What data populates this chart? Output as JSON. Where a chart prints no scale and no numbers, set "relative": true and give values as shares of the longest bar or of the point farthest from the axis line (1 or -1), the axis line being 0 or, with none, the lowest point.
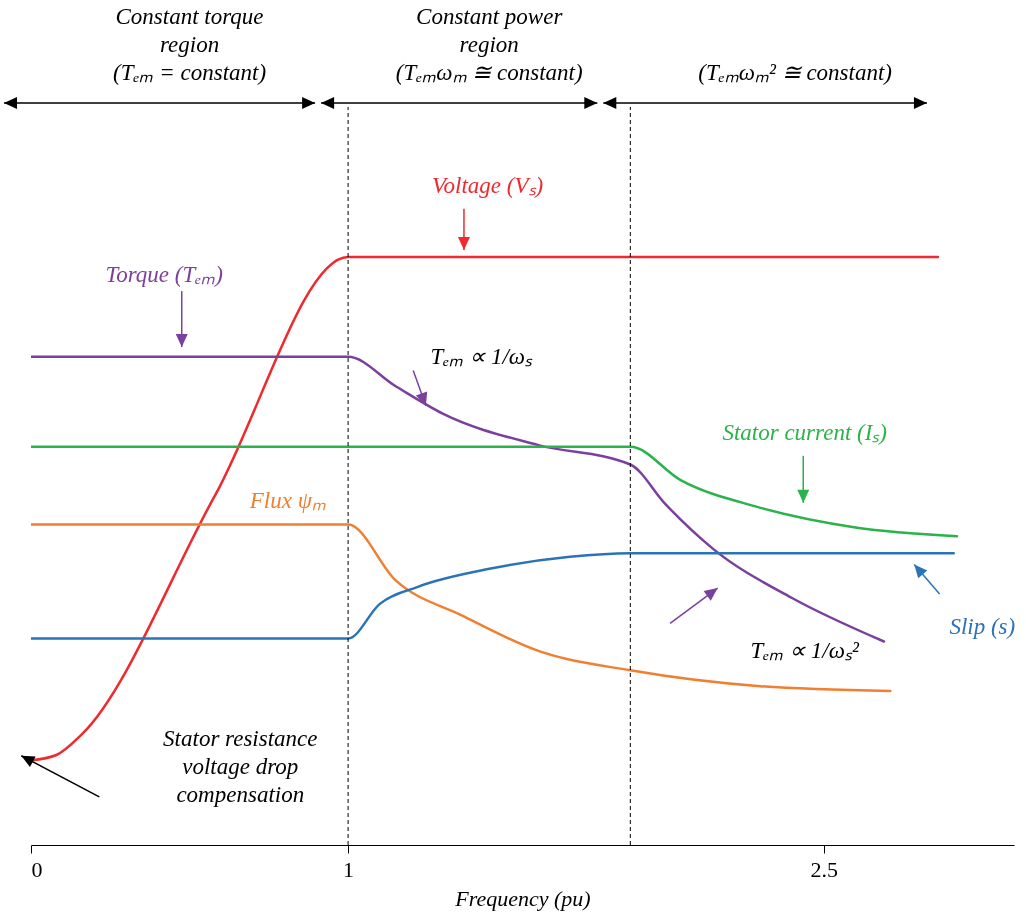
{
  "chart_data": {
    "type": "line",
    "relative": true,
    "xlabel": "Frequency (pu)",
    "xlim": [
      0,
      3.1
    ],
    "xticks": [
      0,
      1,
      2.5
    ],
    "series": [
      {
        "name": "Voltage (Vₛ)",
        "color": "#ee2a2e",
        "x": [
          0,
          0.08,
          0.16,
          0.58,
          1,
          2.86
        ],
        "values": [
          0.144,
          0.153,
          0.188,
          0.594,
          1,
          1
        ]
      },
      {
        "name": "Torque (Tₑₘ)",
        "color": "#7b3f9e",
        "x": [
          0,
          1,
          1.15,
          1.3,
          1.6,
          1.89,
          2.0,
          2.15,
          2.4,
          2.69
        ],
        "values": [
          0.83,
          0.83,
          0.78,
          0.733,
          0.68,
          0.647,
          0.58,
          0.504,
          0.42,
          0.346
        ]
      },
      {
        "name": "Stator current (Iₛ)",
        "color": "#2ab34a",
        "x": [
          0,
          1.89,
          2.05,
          2.29,
          2.6,
          2.92
        ],
        "values": [
          0.677,
          0.677,
          0.62,
          0.575,
          0.54,
          0.525
        ]
      },
      {
        "name": "Flux ψₘ",
        "color": "#f07f30",
        "x": [
          0,
          1,
          1.15,
          1.36,
          1.6,
          1.89,
          2.3,
          2.71
        ],
        "values": [
          0.545,
          0.545,
          0.45,
          0.39,
          0.33,
          0.297,
          0.27,
          0.262
        ]
      },
      {
        "name": "Slip (s)",
        "color": "#2b73b8",
        "x": [
          0,
          1,
          1.1,
          1.22,
          1.45,
          1.7,
          1.89,
          2.91
        ],
        "values": [
          0.351,
          0.351,
          0.41,
          0.439,
          0.47,
          0.49,
          0.496,
          0.496
        ]
      }
    ],
    "ref_lines": [
      {
        "axis": "x",
        "value": 1,
        "line_style": "dashed",
        "color": "#000000"
      },
      {
        "axis": "x",
        "value": 1.89,
        "line_style": "dashed",
        "color": "#000000"
      }
    ],
    "annotations": [
      "Constant torque\nregion\n(Tₑₘ = constant)",
      "Constant power\nregion\n(Tₑₘωₘ ≅ constant)",
      "(Tₑₘωₘ² ≅ constant)",
      "Tₑₘ ∝ 1/ωₛ",
      "Tₑₘ ∝ 1/ωₛ²",
      "Stator resistance\nvoltage drop\ncompensation"
    ]
  }
}
